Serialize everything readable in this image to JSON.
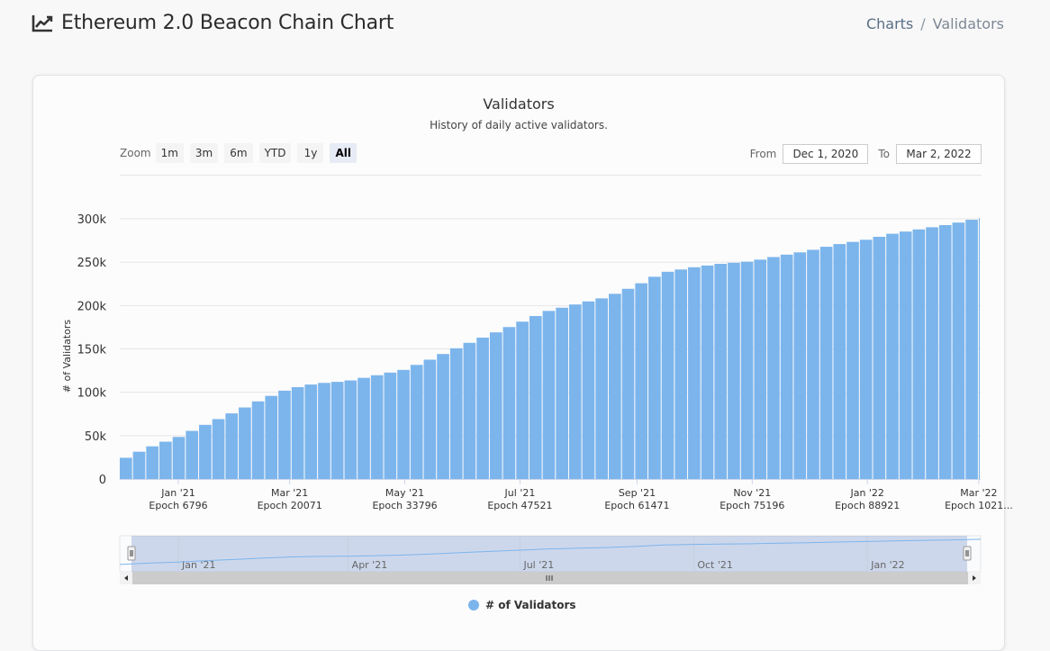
{
  "header": {
    "title": "Ethereum 2.0 Beacon Chain Chart",
    "breadcrumb": {
      "charts": "Charts",
      "separator": "/",
      "current": "Validators"
    }
  },
  "controls": {
    "zoom_label": "Zoom",
    "zoom_buttons": [
      "1m",
      "3m",
      "6m",
      "YTD",
      "1y",
      "All"
    ],
    "zoom_active": "All",
    "from_label": "From",
    "from_value": "Dec 1, 2020",
    "to_label": "To",
    "to_value": "Mar 2, 2022"
  },
  "colors": {
    "series": "#7cb5ec",
    "grid": "#e6e6e6",
    "navigator_mask": "rgba(102,133,194,0.3)"
  },
  "chart_data": {
    "type": "bar",
    "title": "Validators",
    "subtitle": "History of daily active validators.",
    "ylabel": "# of Validators",
    "ylim": [
      0,
      300000
    ],
    "yticks": [
      "0",
      "50k",
      "100k",
      "150k",
      "200k",
      "250k",
      "300k"
    ],
    "xlim": [
      "2020-12-01",
      "2022-03-02"
    ],
    "xticks": [
      {
        "date": "2021-01-01",
        "label": "Jan '21",
        "epoch": "Epoch 6796"
      },
      {
        "date": "2021-03-01",
        "label": "Mar '21",
        "epoch": "Epoch 20071"
      },
      {
        "date": "2021-05-01",
        "label": "May '21",
        "epoch": "Epoch 33796"
      },
      {
        "date": "2021-07-01",
        "label": "Jul '21",
        "epoch": "Epoch 47521"
      },
      {
        "date": "2021-09-01",
        "label": "Sep '21",
        "epoch": "Epoch 61471"
      },
      {
        "date": "2021-11-01",
        "label": "Nov '21",
        "epoch": "Epoch 75196"
      },
      {
        "date": "2022-01-01",
        "label": "Jan '22",
        "epoch": "Epoch 88921"
      },
      {
        "date": "2022-03-01",
        "label": "Mar '22",
        "epoch": "Epoch 1021..."
      }
    ],
    "series": [
      {
        "name": "# of Validators",
        "points": [
          [
            "2020-12-01",
            21000
          ],
          [
            "2020-12-15",
            35000
          ],
          [
            "2021-01-01",
            48000
          ],
          [
            "2021-01-15",
            62000
          ],
          [
            "2021-02-01",
            78000
          ],
          [
            "2021-02-15",
            92000
          ],
          [
            "2021-03-01",
            104000
          ],
          [
            "2021-03-15",
            110000
          ],
          [
            "2021-04-01",
            113000
          ],
          [
            "2021-04-15",
            119000
          ],
          [
            "2021-05-01",
            126000
          ],
          [
            "2021-05-15",
            138000
          ],
          [
            "2021-06-01",
            154000
          ],
          [
            "2021-06-15",
            166000
          ],
          [
            "2021-07-01",
            180000
          ],
          [
            "2021-07-15",
            193000
          ],
          [
            "2021-08-01",
            202000
          ],
          [
            "2021-08-15",
            209000
          ],
          [
            "2021-09-01",
            223000
          ],
          [
            "2021-09-15",
            238000
          ],
          [
            "2021-10-01",
            244000
          ],
          [
            "2021-10-15",
            248000
          ],
          [
            "2021-11-01",
            251000
          ],
          [
            "2021-11-15",
            257000
          ],
          [
            "2021-12-01",
            263000
          ],
          [
            "2021-12-15",
            270000
          ],
          [
            "2022-01-01",
            276000
          ],
          [
            "2022-01-15",
            283000
          ],
          [
            "2022-02-01",
            289000
          ],
          [
            "2022-02-15",
            294000
          ],
          [
            "2022-03-02",
            301000
          ]
        ]
      }
    ],
    "navigator_ticks": [
      "Jan '21",
      "Apr '21",
      "Jul '21",
      "Oct '21",
      "Jan '22"
    ],
    "legend": "bottom-center",
    "grid": true
  }
}
